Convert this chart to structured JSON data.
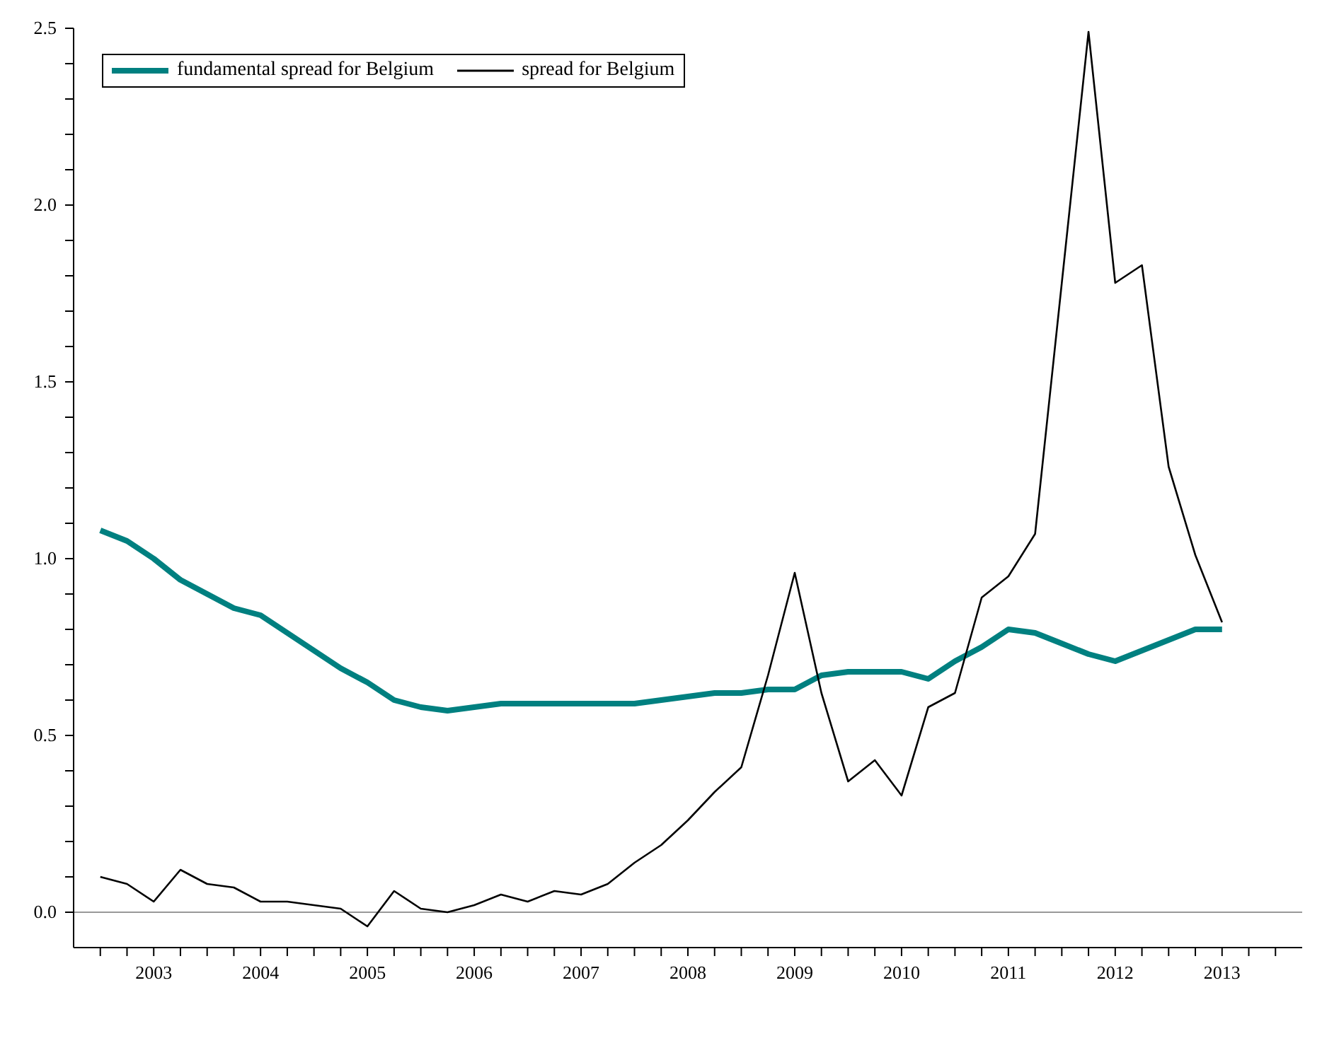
{
  "chart_data": {
    "type": "line",
    "x": [
      2002.5,
      2002.75,
      2003,
      2003.25,
      2003.5,
      2003.75,
      2004,
      2004.25,
      2004.5,
      2004.75,
      2005,
      2005.25,
      2005.5,
      2005.75,
      2006,
      2006.25,
      2006.5,
      2006.75,
      2007,
      2007.25,
      2007.5,
      2007.75,
      2008,
      2008.25,
      2008.5,
      2008.75,
      2009,
      2009.25,
      2009.5,
      2009.75,
      2010,
      2010.25,
      2010.5,
      2010.75,
      2011,
      2011.25,
      2011.5,
      2011.75,
      2012,
      2012.25,
      2012.5,
      2012.75,
      2013
    ],
    "series": [
      {
        "name": "fundamental spread for Belgium",
        "color": "#008080",
        "values": [
          1.08,
          1.05,
          1.0,
          0.94,
          0.9,
          0.86,
          0.84,
          0.79,
          0.74,
          0.69,
          0.65,
          0.6,
          0.58,
          0.57,
          0.58,
          0.59,
          0.59,
          0.59,
          0.59,
          0.59,
          0.59,
          0.6,
          0.61,
          0.62,
          0.62,
          0.63,
          0.63,
          0.67,
          0.68,
          0.68,
          0.68,
          0.66,
          0.71,
          0.75,
          0.8,
          0.79,
          0.76,
          0.73,
          0.71,
          0.74,
          0.77,
          0.8,
          0.8
        ]
      },
      {
        "name": "spread for Belgium",
        "color": "#000000",
        "values": [
          0.1,
          0.08,
          0.03,
          0.12,
          0.08,
          0.07,
          0.03,
          0.03,
          0.02,
          0.01,
          -0.04,
          0.06,
          0.01,
          0.0,
          0.02,
          0.05,
          0.03,
          0.06,
          0.05,
          0.08,
          0.14,
          0.19,
          0.26,
          0.34,
          0.41,
          0.67,
          0.96,
          0.62,
          0.37,
          0.43,
          0.33,
          0.58,
          0.62,
          0.89,
          0.95,
          1.07,
          1.78,
          2.49,
          1.78,
          1.83,
          1.26,
          1.01,
          0.82
        ]
      }
    ],
    "xlim": [
      2002.25,
      2013.75
    ],
    "xticks": [
      {
        "value": 2002.5,
        "label": null
      },
      {
        "value": 2002.75,
        "label": null
      },
      2003,
      {
        "value": 2003.25,
        "label": null
      },
      {
        "value": 2003.5,
        "label": null
      },
      {
        "value": 2003.75,
        "label": null
      },
      2004,
      {
        "value": 2004.25,
        "label": null
      },
      {
        "value": 2004.5,
        "label": null
      },
      {
        "value": 2004.75,
        "label": null
      },
      2005,
      {
        "value": 2005.25,
        "label": null
      },
      {
        "value": 2005.5,
        "label": null
      },
      {
        "value": 2005.75,
        "label": null
      },
      2006,
      {
        "value": 2006.25,
        "label": null
      },
      {
        "value": 2006.5,
        "label": null
      },
      {
        "value": 2006.75,
        "label": null
      },
      2007,
      {
        "value": 2007.25,
        "label": null
      },
      {
        "value": 2007.5,
        "label": null
      },
      {
        "value": 2007.75,
        "label": null
      },
      2008,
      {
        "value": 2008.25,
        "label": null
      },
      {
        "value": 2008.5,
        "label": null
      },
      {
        "value": 2008.75,
        "label": null
      },
      2009,
      {
        "value": 2009.25,
        "label": null
      },
      {
        "value": 2009.5,
        "label": null
      },
      {
        "value": 2009.75,
        "label": null
      },
      2010,
      {
        "value": 2010.25,
        "label": null
      },
      {
        "value": 2010.5,
        "label": null
      },
      {
        "value": 2010.75,
        "label": null
      },
      2011,
      {
        "value": 2011.25,
        "label": null
      },
      {
        "value": 2011.5,
        "label": null
      },
      {
        "value": 2011.75,
        "label": null
      },
      2012,
      {
        "value": 2012.25,
        "label": null
      },
      {
        "value": 2012.5,
        "label": null
      },
      {
        "value": 2012.75,
        "label": null
      },
      2013,
      {
        "value": 2013.25,
        "label": null
      },
      {
        "value": 2013.5,
        "label": null
      }
    ],
    "ylim": [
      -0.1,
      2.5
    ],
    "yticks": [
      {
        "value": 0,
        "label": "0.0"
      },
      {
        "value": 0.1,
        "label": null
      },
      {
        "value": 0.2,
        "label": null
      },
      {
        "value": 0.3,
        "label": null
      },
      {
        "value": 0.4,
        "label": null
      },
      {
        "value": 0.5,
        "label": "0.5"
      },
      {
        "value": 0.6,
        "label": null
      },
      {
        "value": 0.7,
        "label": null
      },
      {
        "value": 0.8,
        "label": null
      },
      {
        "value": 0.9,
        "label": null
      },
      {
        "value": 1,
        "label": "1.0"
      },
      {
        "value": 1.1,
        "label": null
      },
      {
        "value": 1.2,
        "label": null
      },
      {
        "value": 1.3,
        "label": null
      },
      {
        "value": 1.4,
        "label": null
      },
      {
        "value": 1.5,
        "label": "1.5"
      },
      {
        "value": 1.6,
        "label": null
      },
      {
        "value": 1.7,
        "label": null
      },
      {
        "value": 1.8,
        "label": null
      },
      {
        "value": 1.9,
        "label": null
      },
      {
        "value": 2,
        "label": "2.0"
      },
      {
        "value": 2.1,
        "label": null
      },
      {
        "value": 2.2,
        "label": null
      },
      {
        "value": 2.3,
        "label": null
      },
      {
        "value": 2.4,
        "label": null
      },
      {
        "value": 2.5,
        "label": "2.5"
      }
    ],
    "ref_lines": [
      {
        "axis": "y",
        "value": 0,
        "label": null,
        "color": "#999999"
      }
    ],
    "legend": "top left",
    "grid": false,
    "marker": "none"
  }
}
